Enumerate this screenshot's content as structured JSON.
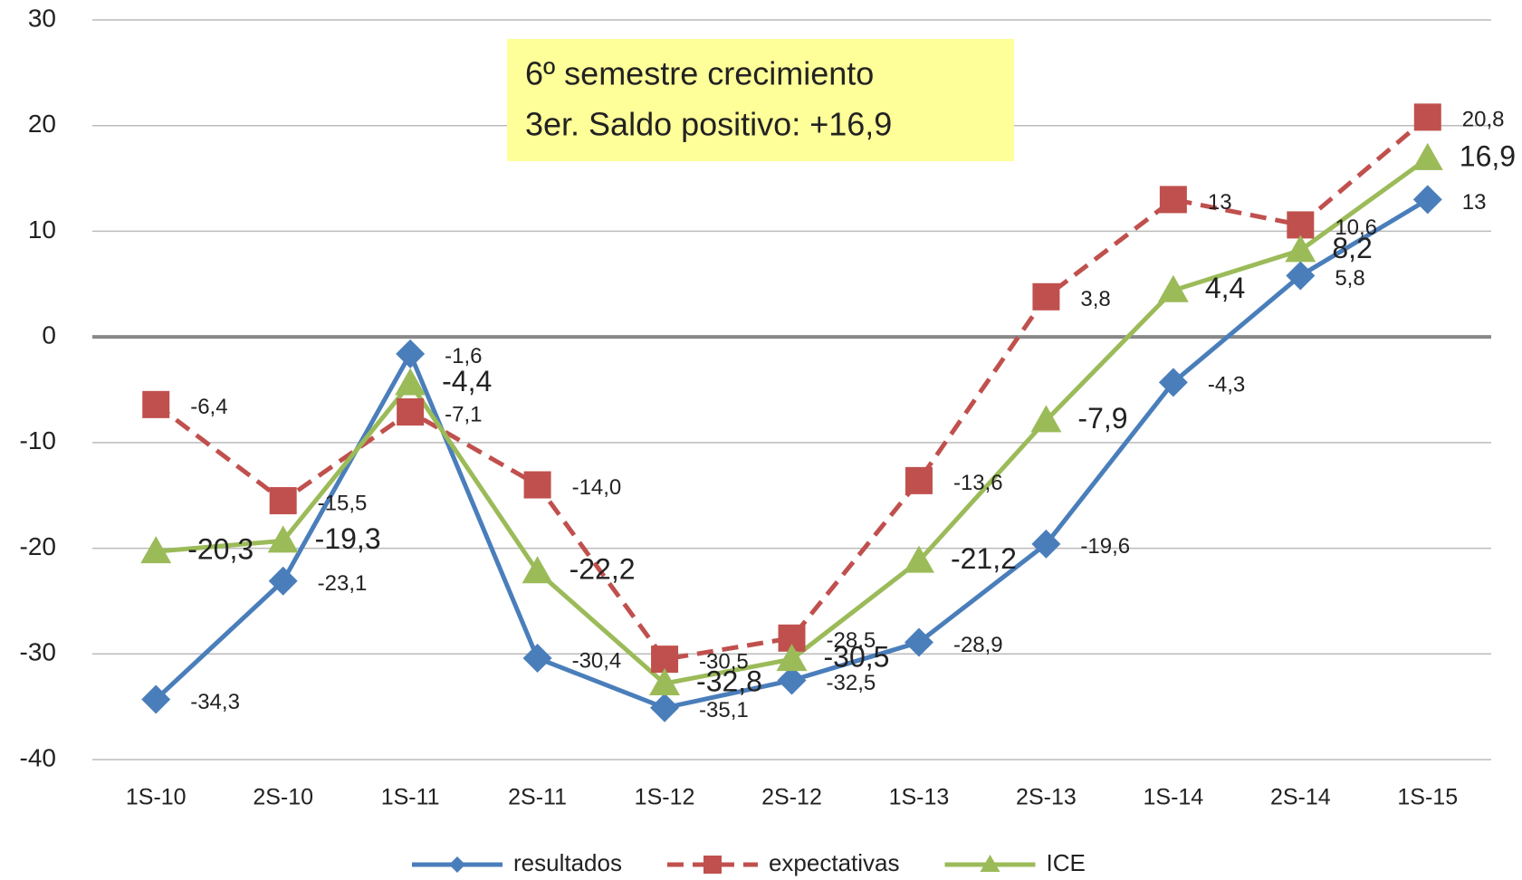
{
  "chart_data": {
    "type": "line",
    "annotation": [
      "6º semestre crecimiento",
      "3er. Saldo positivo: +16,9"
    ],
    "categories": [
      "1S-10",
      "2S-10",
      "1S-11",
      "2S-11",
      "1S-12",
      "2S-12",
      "1S-13",
      "2S-13",
      "1S-14",
      "2S-14",
      "1S-15"
    ],
    "series": [
      {
        "name": "resultados",
        "color": "#4a7ebb",
        "marker": "diamond",
        "dash": false,
        "values": [
          -34.3,
          -23.1,
          -1.6,
          -30.4,
          -35.1,
          -32.5,
          -28.9,
          -19.6,
          -4.3,
          5.8,
          13
        ],
        "value_labels": [
          "-34,3",
          "-23,1",
          "-1,6",
          "-30,4",
          "-35,1",
          "-32,5",
          "-28,9",
          "-19,6",
          "-4,3",
          "5,8",
          "13"
        ]
      },
      {
        "name": "expectativas",
        "color": "#c0504d",
        "marker": "square",
        "dash": true,
        "values": [
          -6.4,
          -15.5,
          -7.1,
          -14.0,
          -30.5,
          -28.5,
          -13.6,
          3.8,
          13,
          10.6,
          20.8
        ],
        "value_labels": [
          "-6,4",
          "-15,5",
          "-7,1",
          "-14,0",
          "-30,5",
          "-28,5",
          "-13,6",
          "3,8",
          "13",
          "10,6",
          "20,8"
        ]
      },
      {
        "name": "ICE",
        "color": "#9bbb59",
        "marker": "triangle",
        "dash": false,
        "values": [
          -20.3,
          -19.3,
          -4.4,
          -22.2,
          -32.8,
          -30.5,
          -21.2,
          -7.9,
          4.4,
          8.2,
          16.9
        ],
        "value_labels": [
          "-20,3",
          "-19,3",
          "-4,4",
          "-22,2",
          "-32,8",
          "-30,5",
          "-21,2",
          "-7,9",
          "4,4",
          "8,2",
          "16,9"
        ]
      }
    ],
    "ylim": [
      -40,
      30
    ],
    "yticks": [
      -40,
      -30,
      -20,
      -10,
      0,
      10,
      20,
      30
    ],
    "grid": true,
    "legend": "bottom"
  }
}
